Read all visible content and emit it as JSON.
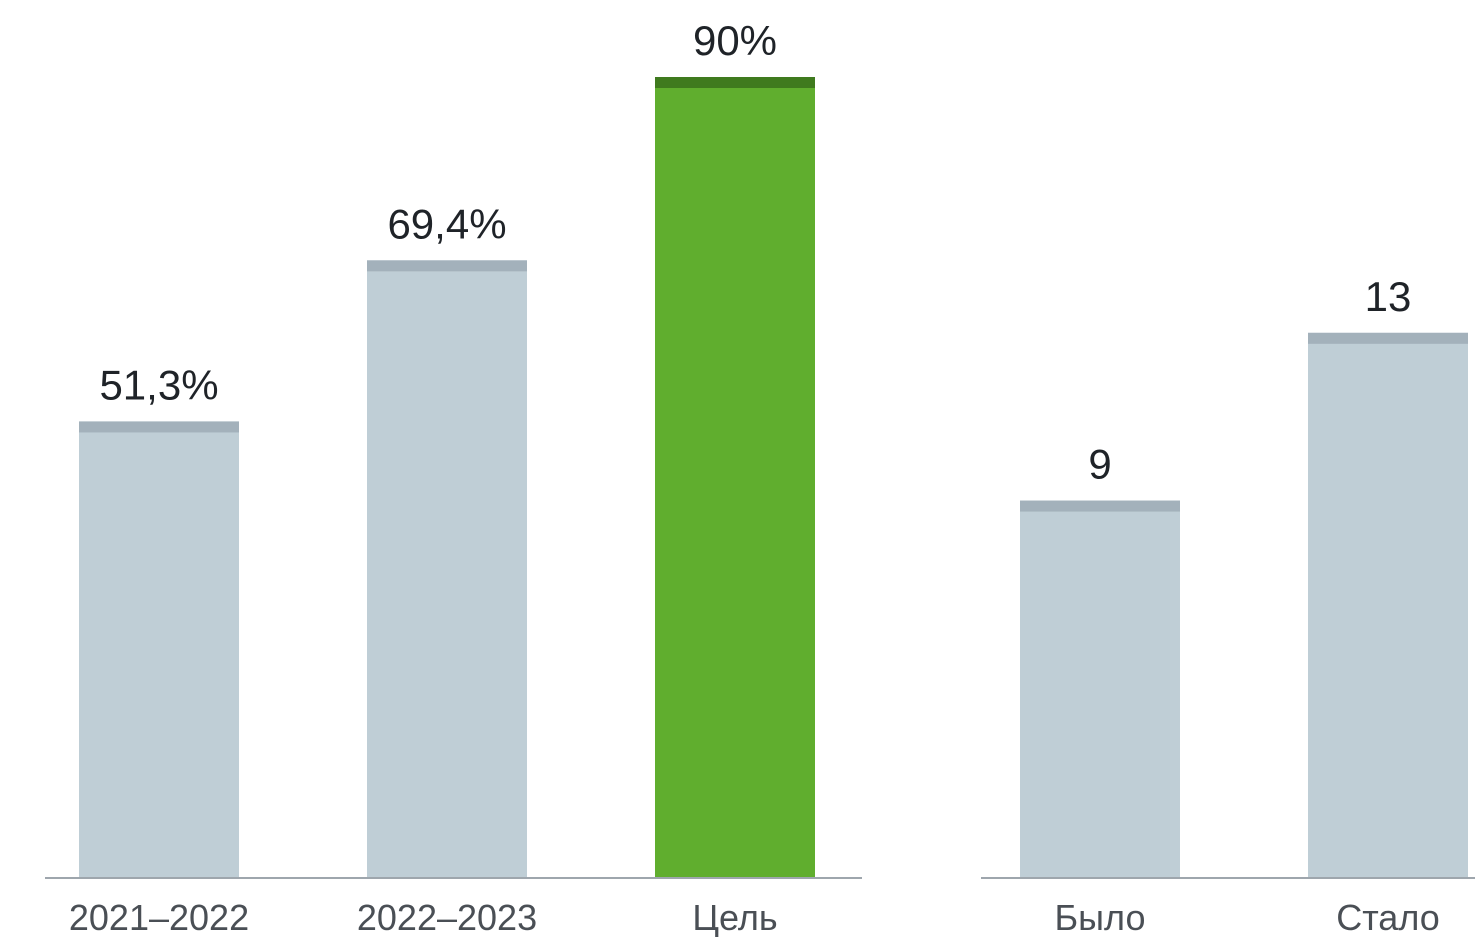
{
  "chart_data": [
    {
      "type": "bar",
      "categories": [
        "2021–2022",
        "2022–2023",
        "Цель"
      ],
      "values": [
        51.3,
        69.4,
        90
      ],
      "value_labels": [
        "51,3%",
        "69,4%",
        "90%"
      ],
      "highlight_index": 2,
      "ylim": [
        0,
        90
      ],
      "grid": false,
      "colors": {
        "bar": "#bfced6",
        "bar_cap": "#a3b1bb",
        "highlight": "#60ae2e",
        "highlight_cap": "#3f7a1e",
        "axis": "#9ea6ad"
      }
    },
    {
      "type": "bar",
      "categories": [
        "Было",
        "Стало"
      ],
      "values": [
        9,
        13
      ],
      "value_labels": [
        "9",
        "13"
      ],
      "ylim": [
        0,
        19.1
      ],
      "grid": false,
      "colors": {
        "bar": "#bfced6",
        "bar_cap": "#a3b1bb",
        "axis": "#9ea6ad"
      }
    }
  ]
}
